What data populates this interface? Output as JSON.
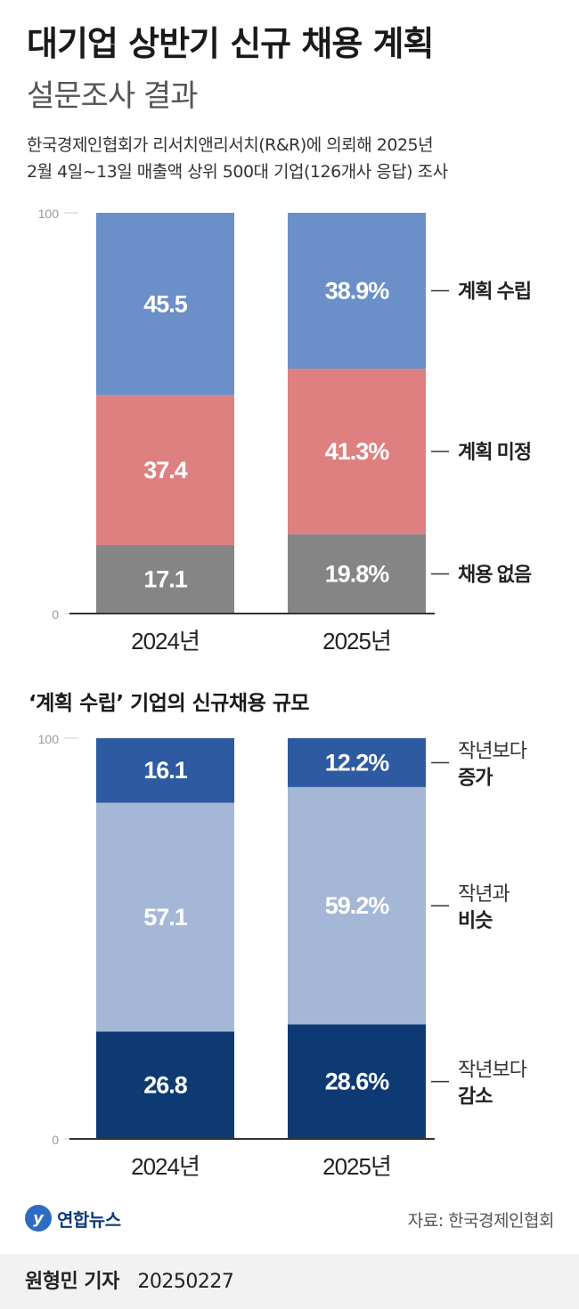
{
  "title": "대기업 상반기 신규 채용 계획",
  "subtitle": "설문조사 결과",
  "description_line1": "한국경제인협회가 리서치앤리서치(R&R)에 의뢰해 2025년",
  "description_line2": "2월 4일~13일 매출액 상위 500대 기업(126개사 응답) 조사",
  "section2_title": "‘계획 수립’ 기업의 신규채용 규모",
  "logo_text": "연합뉴스",
  "source": "자료: 한국경제인협회",
  "byline_name": "원형민 기자",
  "byline_date": "20250227",
  "colors": {
    "plan": "#6b8fc8",
    "undecided": "#de8080",
    "none": "#858585",
    "increase": "#2d5aa0",
    "similar": "#a5b7d6",
    "decrease": "#0e3a73"
  },
  "chart_data": [
    {
      "type": "bar",
      "stacked": true,
      "categories": [
        "2024년",
        "2025년"
      ],
      "ylim": [
        0,
        100
      ],
      "yticks": [
        "100",
        "0"
      ],
      "series": [
        {
          "name": "채용 없음",
          "values": [
            17.1,
            19.8
          ],
          "labels": [
            "17.1",
            "19.8%"
          ]
        },
        {
          "name": "계획 미정",
          "values": [
            37.4,
            41.3
          ],
          "labels": [
            "37.4",
            "41.3%"
          ]
        },
        {
          "name": "계획 수립",
          "values": [
            45.5,
            38.9
          ],
          "labels": [
            "45.5",
            "38.9%"
          ]
        }
      ]
    },
    {
      "type": "bar",
      "stacked": true,
      "categories": [
        "2024년",
        "2025년"
      ],
      "ylim": [
        0,
        100
      ],
      "yticks": [
        "100",
        "0"
      ],
      "series": [
        {
          "name": [
            "작년보다",
            "감소"
          ],
          "values": [
            26.8,
            28.6
          ],
          "labels": [
            "26.8",
            "28.6%"
          ]
        },
        {
          "name": [
            "작년과",
            "비슷"
          ],
          "values": [
            57.1,
            59.2
          ],
          "labels": [
            "57.1",
            "59.2%"
          ]
        },
        {
          "name": [
            "작년보다",
            "증가"
          ],
          "values": [
            16.1,
            12.2
          ],
          "labels": [
            "16.1",
            "12.2%"
          ]
        }
      ]
    }
  ]
}
